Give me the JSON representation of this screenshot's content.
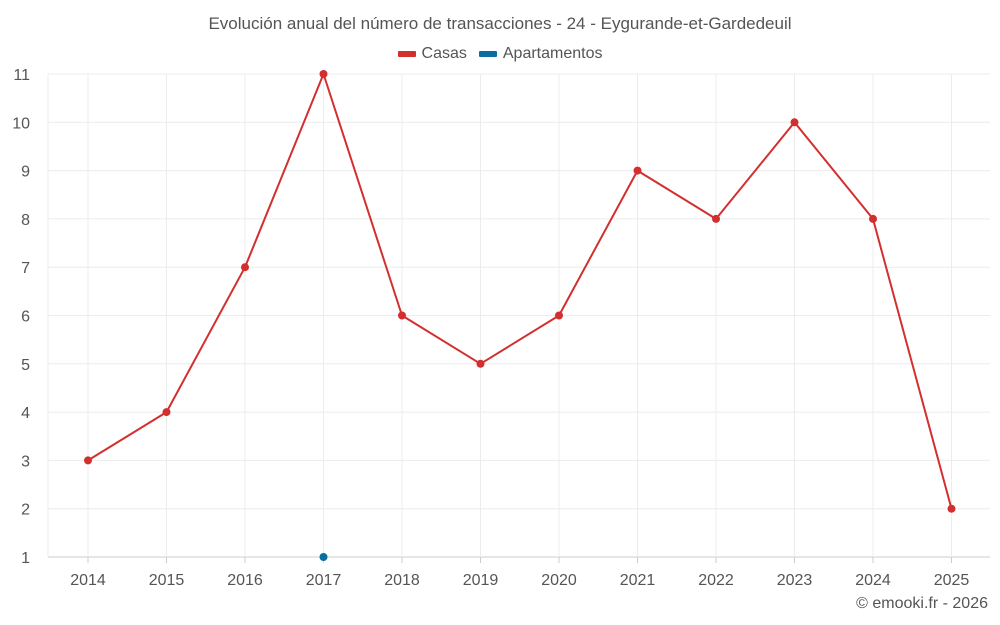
{
  "chart_data": {
    "type": "line",
    "title": "Evolución anual del número de transacciones - 24 - Eygurande-et-Gardedeuil",
    "categories": [
      "2014",
      "2015",
      "2016",
      "2017",
      "2018",
      "2019",
      "2020",
      "2021",
      "2022",
      "2023",
      "2024",
      "2025"
    ],
    "ylim": [
      1,
      11
    ],
    "yticks": [
      1,
      2,
      3,
      4,
      5,
      6,
      7,
      8,
      9,
      10,
      11
    ],
    "grid": true,
    "legend_position": "top-center",
    "series": [
      {
        "name": "Casas",
        "color": "#d32f2f",
        "values": [
          3,
          4,
          7,
          11,
          6,
          5,
          6,
          9,
          8,
          10,
          8,
          2
        ]
      },
      {
        "name": "Apartamentos",
        "color": "#0b6ea0",
        "values": [
          null,
          null,
          null,
          1,
          null,
          null,
          null,
          null,
          null,
          null,
          null,
          null
        ]
      }
    ]
  },
  "copyright": "© emooki.fr - 2026"
}
